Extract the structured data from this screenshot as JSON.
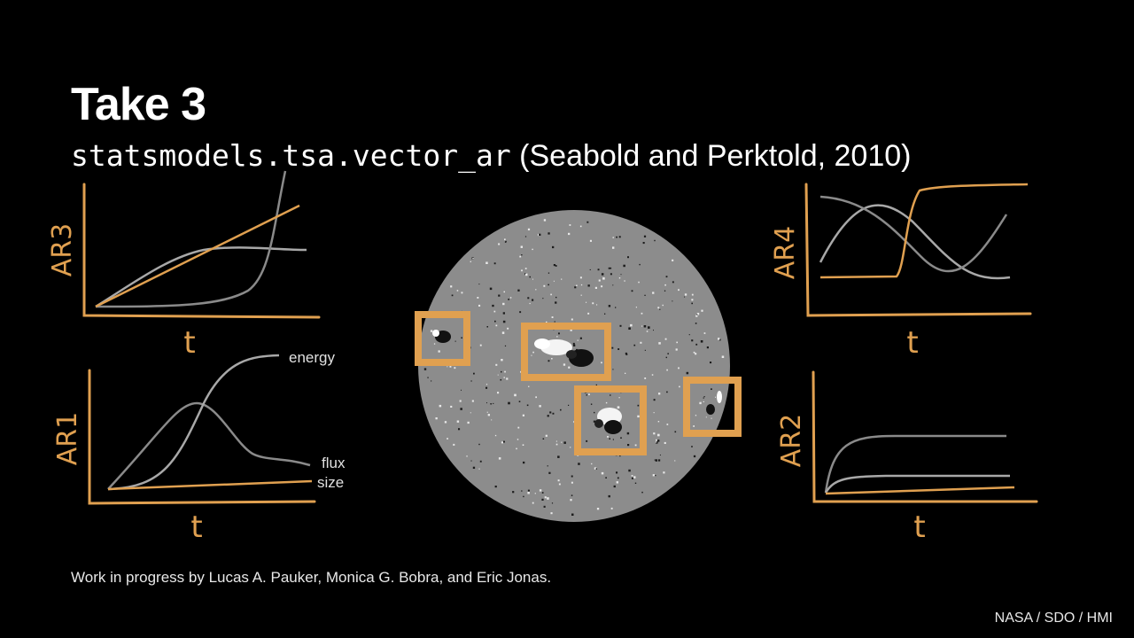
{
  "slide": {
    "title": "Take 3",
    "subtitle_code": "statsmodels.tsa.vector_ar",
    "subtitle_ref": "(Seabold and Perktold, 2010)",
    "footer": "Work in progress by Lucas A. Pauker, Monica G. Bobra, and Eric Jonas.",
    "credit": "NASA / SDO / HMI"
  },
  "sketches": {
    "ar3": {
      "ylabel": "AR3",
      "xlabel": "t"
    },
    "ar1": {
      "ylabel": "AR1",
      "xlabel": "t",
      "labels": {
        "energy": "energy",
        "flux": "flux",
        "size": "size"
      }
    },
    "ar4": {
      "ylabel": "AR4",
      "xlabel": "t"
    },
    "ar2": {
      "ylabel": "AR2",
      "xlabel": "t"
    }
  },
  "colors": {
    "accent": "#e0a050",
    "curve": "#9a9a9a",
    "background": "#000000",
    "sun": "#8c8c8c"
  }
}
